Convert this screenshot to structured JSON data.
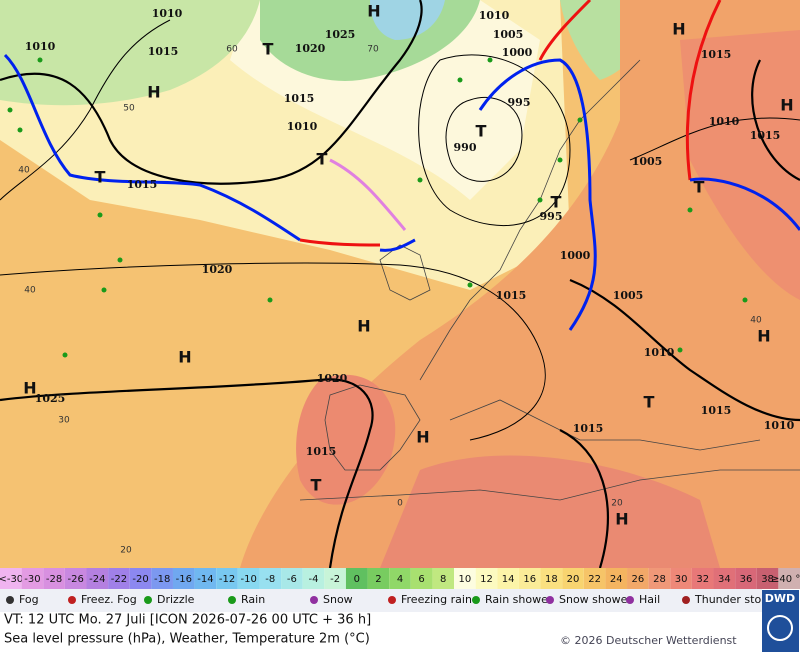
{
  "map": {
    "pressure_labels": [
      "1010",
      "1010",
      "1015",
      "1020",
      "1025",
      "1010",
      "1005",
      "1000",
      "995",
      "990",
      "1015",
      "1010",
      "1015",
      "1020",
      "1025",
      "1020",
      "1015",
      "1015",
      "1005",
      "1010",
      "1015",
      "1010",
      "1015",
      "1005",
      "1010",
      "1015",
      "1015",
      "1000",
      "995"
    ],
    "centers": [
      "H",
      "T",
      "H",
      "T",
      "T",
      "T",
      "H",
      "H",
      "H",
      "H",
      "T",
      "H",
      "T",
      "H",
      "H",
      "T",
      "H",
      "T"
    ],
    "temperature_labels": [
      "50",
      "60",
      "70",
      "40",
      "40",
      "30",
      "20",
      "0",
      "20",
      "40"
    ]
  },
  "legend": {
    "scale": [
      {
        "label": "<-30",
        "color": "#f0b4f0"
      },
      {
        "label": "-30",
        "color": "#e39be3"
      },
      {
        "label": "-28",
        "color": "#d890e0"
      },
      {
        "label": "-26",
        "color": "#c888e0"
      },
      {
        "label": "-24",
        "color": "#b480e0"
      },
      {
        "label": "-22",
        "color": "#a080e8"
      },
      {
        "label": "-20",
        "color": "#8c88f0"
      },
      {
        "label": "-18",
        "color": "#7c98f0"
      },
      {
        "label": "-16",
        "color": "#70a8f0"
      },
      {
        "label": "-14",
        "color": "#70b8f0"
      },
      {
        "label": "-12",
        "color": "#78c8f0"
      },
      {
        "label": "-10",
        "color": "#88d8f0"
      },
      {
        "label": "-8",
        "color": "#98e0f0"
      },
      {
        "label": "-6",
        "color": "#a8e8e8"
      },
      {
        "label": "-4",
        "color": "#b8f0e0"
      },
      {
        "label": "-2",
        "color": "#c8f4d8"
      },
      {
        "label": "0",
        "color": "#60c060"
      },
      {
        "label": "2",
        "color": "#78cc60"
      },
      {
        "label": "4",
        "color": "#90d868"
      },
      {
        "label": "6",
        "color": "#a8e070"
      },
      {
        "label": "8",
        "color": "#c0e880"
      },
      {
        "label": "10",
        "color": "#fdfde0"
      },
      {
        "label": "12",
        "color": "#fcfac0"
      },
      {
        "label": "14",
        "color": "#fcf4a8"
      },
      {
        "label": "16",
        "color": "#fbec98"
      },
      {
        "label": "18",
        "color": "#fae080"
      },
      {
        "label": "20",
        "color": "#f8d470"
      },
      {
        "label": "22",
        "color": "#f6c468"
      },
      {
        "label": "24",
        "color": "#f4b460"
      },
      {
        "label": "26",
        "color": "#f2a868"
      },
      {
        "label": "28",
        "color": "#f09878"
      },
      {
        "label": "30",
        "color": "#ee8878"
      },
      {
        "label": "32",
        "color": "#e87878"
      },
      {
        "label": "34",
        "color": "#e07078"
      },
      {
        "label": "36",
        "color": "#d86878"
      },
      {
        "label": "38",
        "color": "#c86070"
      },
      {
        "label": "≥40 °C",
        "color": "#d0b0b0"
      }
    ],
    "symbols": [
      "Fog",
      "Freez. Fog",
      "Drizzle",
      "Rain",
      "Snow",
      "Freezing rain",
      "Rain shower",
      "Snow shower",
      "Hail",
      "Thunder storm"
    ]
  },
  "footer": {
    "valid_time": "VT: 12 UTC Mo.   27 Juli [ICON 2026-07-26  00 UTC + 36 h]",
    "description": "Sea level pressure (hPa), Weather, Temperature 2m (°C)",
    "copyright": "© 2026 Deutscher Wetterdienst",
    "logo": "DWD"
  }
}
